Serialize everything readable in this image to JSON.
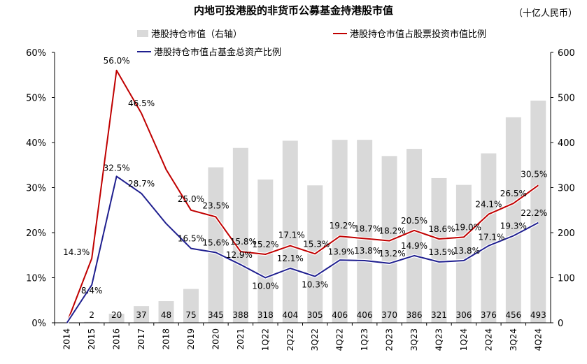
{
  "chart_data": {
    "type": "bar+line",
    "title": "内地可投港股的非货币公募基金持港股市值",
    "unit": "（十亿人民币）",
    "categories": [
      "2014",
      "2015",
      "2016",
      "2017",
      "2018",
      "2019",
      "2020",
      "2021",
      "1Q22",
      "2Q22",
      "3Q22",
      "4Q22",
      "1Q23",
      "2Q23",
      "3Q23",
      "4Q23",
      "1Q24",
      "2Q24",
      "3Q24",
      "4Q24"
    ],
    "left_axis": {
      "range": [
        0,
        60
      ],
      "ticks": [
        "0%",
        "10%",
        "20%",
        "30%",
        "40%",
        "50%",
        "60%"
      ]
    },
    "right_axis": {
      "range": [
        0,
        600
      ],
      "ticks": [
        "0",
        "100",
        "200",
        "300",
        "400",
        "500",
        "600"
      ]
    },
    "series": [
      {
        "name": "港股持仓市值（右轴）",
        "type": "bar",
        "axis": "right",
        "color": "#d9d9d9",
        "values": [
          0,
          2,
          20,
          37,
          48,
          75,
          345,
          388,
          318,
          404,
          305,
          406,
          406,
          370,
          386,
          321,
          306,
          376,
          456,
          493
        ],
        "labels": [
          "",
          "2",
          "20",
          "37",
          "48",
          "75",
          "345",
          "388",
          "318",
          "404",
          "305",
          "406",
          "406",
          "370",
          "386",
          "321",
          "306",
          "376",
          "456",
          "493"
        ]
      },
      {
        "name": "港股持仓市值占股票投资市值比例",
        "type": "line",
        "axis": "left",
        "color": "#c00000",
        "values": [
          0,
          14.3,
          56.0,
          46.5,
          34.0,
          25.0,
          23.5,
          15.8,
          15.2,
          17.1,
          15.3,
          19.2,
          18.7,
          18.2,
          20.5,
          18.6,
          19.0,
          24.1,
          26.5,
          30.5
        ],
        "labels": [
          "",
          "14.3%",
          "56.0%",
          "46.5%",
          "",
          "25.0%",
          "23.5%",
          "15.8%",
          "15.2%",
          "17.1%",
          "15.3%",
          "19.2%",
          "18.7%",
          "18.2%",
          "20.5%",
          "18.6%",
          "19.0%",
          "24.1%",
          "26.5%",
          "30.5%"
        ]
      },
      {
        "name": "港股持仓市值占基金总资产比例",
        "type": "line",
        "axis": "left",
        "color": "#1f1f8f",
        "values": [
          0,
          8.4,
          32.5,
          28.7,
          22.0,
          16.5,
          15.6,
          12.9,
          10.0,
          12.1,
          10.3,
          13.9,
          13.8,
          13.2,
          14.9,
          13.5,
          13.8,
          17.1,
          19.3,
          22.2
        ],
        "labels": [
          "",
          "8.4%",
          "32.5%",
          "28.7%",
          "",
          "16.5%",
          "15.6%",
          "12.9%",
          "10.0%",
          "12.1%",
          "10.3%",
          "13.9%",
          "13.8%",
          "13.2%",
          "14.9%",
          "13.5%",
          "13.8%",
          "17.1%",
          "19.3%",
          "22.2%"
        ]
      }
    ],
    "legend": "top"
  }
}
